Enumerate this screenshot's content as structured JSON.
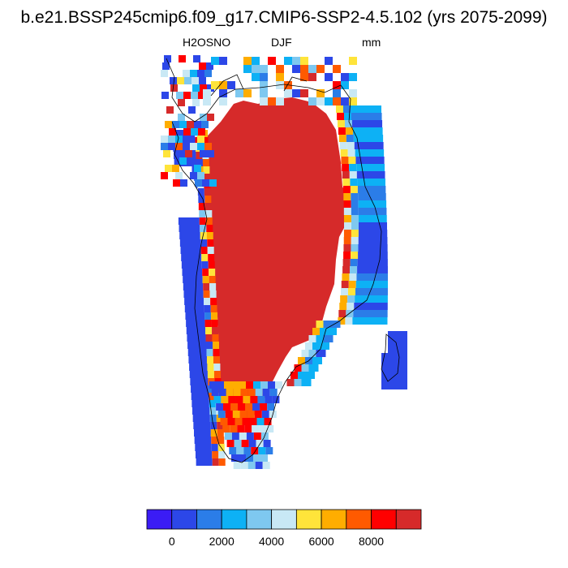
{
  "title": "b.e21.BSSP245cmip6.f09_g17.CMIP6-SSP2-4.5.102 (yrs 2075-2099)",
  "variable": "H2OSNO",
  "season": "DJF",
  "units": "mm",
  "map": {
    "region_icon": "greenland-map",
    "interior_value": 9500,
    "colors": {
      "interior": "#d62a2a",
      "coast_outline": "#000000"
    }
  },
  "colorbar": {
    "colors": [
      "#3b1cf5",
      "#2c47e8",
      "#2b7de8",
      "#0db1f5",
      "#7ec8f0",
      "#c8e8f5",
      "#ffe43a",
      "#ffad00",
      "#ff5a00",
      "#ff0000",
      "#d62a2a"
    ],
    "tick_labels": [
      "0",
      "2000",
      "4000",
      "6000",
      "8000"
    ]
  }
}
